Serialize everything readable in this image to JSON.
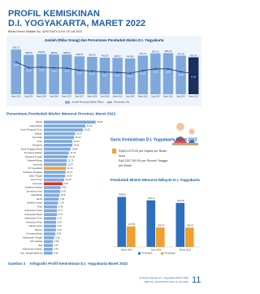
{
  "header": {
    "title": [
      "PROFIL KEMISKINAN",
      "D.I. YOGYAKARTA, MARET 2022"
    ],
    "subtitle": "Berita Resmi Statistik No. 42/07/34/Th.XXIV, 15 Juli 2022"
  },
  "chart_data": [
    {
      "type": "bar-line",
      "title": "Jumlah (Ribu Orang) dan Persentase Penduduk Miskin D.I. Yogyakarta",
      "categories": [
        "Maret 2015",
        "Sept 2015",
        "Maret 2016",
        "Sept 2016",
        "Maret 2017",
        "Sept 2017",
        "Maret 2018",
        "Sept 2018",
        "Maret 2019",
        "Sept 2019",
        "Maret 2020",
        "Sept 2020",
        "Maret 2021",
        "Sept 2021",
        "Maret 2022"
      ],
      "ylim": [
        0,
        600
      ],
      "y2lim": [
        5,
        20
      ],
      "series": [
        {
          "name": "Jumlah Penduduk Miskin (Ribu)",
          "color": "#7fa9dc",
          "values": [
            550.23,
            485.56,
            494.94,
            488.83,
            488.53,
            466.33,
            460.1,
            450.25,
            448.47,
            440.89,
            475.72,
            503.14,
            506.45,
            474.49,
            454.76
          ],
          "value_labels": [
            "550,23",
            "485,56",
            "494,94",
            "488,83",
            "488,53",
            "466,33",
            "460,10",
            "450,25",
            "448,47",
            "440,89",
            "475,72",
            "503,14",
            "506,45",
            "474,49",
            "454,76"
          ]
        },
        {
          "name": "Persentase (%)",
          "color": "#1b2f5e",
          "axis": "y2",
          "values": [
            14.91,
            13.16,
            13.34,
            13.1,
            13.02,
            12.36,
            12.13,
            11.81,
            11.7,
            11.44,
            12.28,
            12.8,
            12.8,
            11.91,
            11.34
          ],
          "value_labels": [
            "14,91",
            "13,16",
            "13,34",
            "13,10",
            "13,02",
            "12,36",
            "12,13",
            "11,81",
            "11,70",
            "11,44",
            "12,28",
            "12,80",
            "12,80",
            "11,91",
            "11,34"
          ]
        }
      ]
    },
    {
      "type": "hbar",
      "title": "Persentase Penduduk Miskin Menurut Provinsi, Maret 2022",
      "xlim": [
        0,
        30
      ],
      "categories": [
        "Papua",
        "Papua Barat",
        "Nusa Tenggara Timur",
        "Maluku",
        "Gorontalo",
        "Aceh",
        "Bengkulu",
        "Nusa Tenggara Barat",
        "Sumatera Selatan",
        "Sulawesi Tengah",
        "Sulawesi Barat",
        "Lampung",
        "DI Yogyakarta",
        "Sulawesi Tenggara",
        "Jawa Tengah",
        "Jawa Timur",
        "Indonesia",
        "Sulawesi Selatan",
        "Sumatera Utara",
        "Jawa Barat",
        "Jambi",
        "Sulawesi Utara",
        "Riau",
        "Kalimantan Utara",
        "Kalimantan Barat",
        "Kalimantan Timur",
        "Kepulauan Riau",
        "Maluku Utara",
        "Banten",
        "Sumatera Barat",
        "Kalimantan Tengah",
        "DKI Jakarta",
        "Bali",
        "Kalimantan Selatan",
        "Kep. Bangka Belitung"
      ],
      "values": [
        26.56,
        21.33,
        20.05,
        15.97,
        15.42,
        14.64,
        14.62,
        13.68,
        12.79,
        12.33,
        11.75,
        11.57,
        11.34,
        11.17,
        10.93,
        10.38,
        9.54,
        8.63,
        8.42,
        8.06,
        7.62,
        7.28,
        6.78,
        6.77,
        6.73,
        6.31,
        6.24,
        6.23,
        6.16,
        5.92,
        5.28,
        4.69,
        4.57,
        4.49,
        4.45
      ],
      "value_labels": [
        "26,56",
        "21,33",
        "20,05",
        "15,97",
        "15,42",
        "14,64",
        "14,62",
        "13,68",
        "12,79",
        "12,33",
        "11,75",
        "11,57",
        "11,34",
        "11,17",
        "10,93",
        "10,38",
        "9,54",
        "8,63",
        "8,42",
        "8,06",
        "7,62",
        "7,28",
        "6,78",
        "6,77",
        "6,73",
        "6,31",
        "6,24",
        "6,23",
        "6,16",
        "5,92",
        "5,28",
        "4,69",
        "4,57",
        "4,49",
        "4,45"
      ],
      "colors": [
        "#7fa9dc",
        "#7fa9dc",
        "#7fa9dc",
        "#7fa9dc",
        "#7fa9dc",
        "#7fa9dc",
        "#7fa9dc",
        "#7fa9dc",
        "#7fa9dc",
        "#7fa9dc",
        "#7fa9dc",
        "#7fa9dc",
        "#f0a030",
        "#7fa9dc",
        "#7fa9dc",
        "#7fa9dc",
        "#d9342b",
        "#7fa9dc",
        "#7fa9dc",
        "#7fa9dc",
        "#7fa9dc",
        "#7fa9dc",
        "#7fa9dc",
        "#7fa9dc",
        "#7fa9dc",
        "#7fa9dc",
        "#7fa9dc",
        "#7fa9dc",
        "#7fa9dc",
        "#7fa9dc",
        "#7fa9dc",
        "#7fa9dc",
        "#7fa9dc",
        "#7fa9dc",
        "#7fa9dc"
      ]
    },
    {
      "type": "grouped-bar",
      "title": "Penduduk Miskin Menurut Wilayah D.I. Yogyakarta",
      "categories": [
        "Maret 2021",
        "Sept 2021",
        "Maret 2022"
      ],
      "ylim": [
        0,
        420
      ],
      "series": [
        {
          "name": "Perkotaan",
          "color": "#2e6fbf",
          "values": [
            358.89,
            334.71,
            316.05
          ],
          "value_labels": [
            "358,89",
            "334,71",
            "316,05"
          ]
        },
        {
          "name": "Perdesaan",
          "color": "#f0a030",
          "values": [
            147.56,
            139.78,
            138.7
          ],
          "value_labels": [
            "147,56",
            "139,78",
            "138,70"
          ]
        }
      ]
    }
  ],
  "poverty_line": {
    "title": "Garis Kemiskinan D.I. Yogyakarta Maret 2022",
    "lines": [
      "Rp521.673,00 per Kapita per Bulan",
      "Atau",
      "Rp2.232.760,00 per Rumah Tangga",
      "per Bulan"
    ]
  },
  "footer": {
    "caption_label": "Gambar 2",
    "caption": "Infografis Profil Kemiskinan D.I. Yogyakarta Maret 2022",
    "running_title": "Profil Kemiskinan D.I. Yogyakarta Maret 2022",
    "running_note": "BRS No. 42/07/34/Th.XXIV, 15 Juli 2022",
    "page": "11"
  }
}
